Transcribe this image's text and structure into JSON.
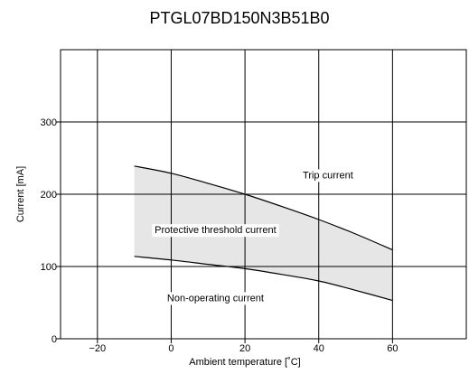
{
  "chart_data": {
    "type": "area",
    "title": "PTGL07BD150N3B51B0",
    "xlabel": "Ambient temperature [˚C]",
    "ylabel": "Current [mA]",
    "xlim": [
      -30,
      80
    ],
    "ylim": [
      0,
      400
    ],
    "x_ticks": [
      -20,
      0,
      20,
      40,
      60
    ],
    "y_ticks": [
      0,
      100,
      200,
      300
    ],
    "grid": true,
    "series": [
      {
        "name": "Trip current",
        "x": [
          -10,
          0,
          10,
          20,
          30,
          40,
          50,
          60
        ],
        "values": [
          239,
          229,
          215,
          200,
          183,
          165,
          145,
          123
        ],
        "color": "#000000"
      },
      {
        "name": "Non-operating current",
        "x": [
          -10,
          0,
          10,
          20,
          30,
          40,
          50,
          60
        ],
        "values": [
          114,
          109,
          103,
          97,
          89,
          80,
          67,
          53
        ],
        "color": "#000000"
      }
    ],
    "band": {
      "label": "Protective threshold current",
      "between": [
        "Trip current",
        "Non-operating current"
      ],
      "fill": "#e6e6e6"
    },
    "annotations": [
      {
        "text": "Trip current",
        "x": 42.5,
        "y": 222
      },
      {
        "text": "Protective threshold current",
        "x": 12,
        "y": 146
      },
      {
        "text": "Non-operating current",
        "x": 12,
        "y": 52
      }
    ]
  }
}
